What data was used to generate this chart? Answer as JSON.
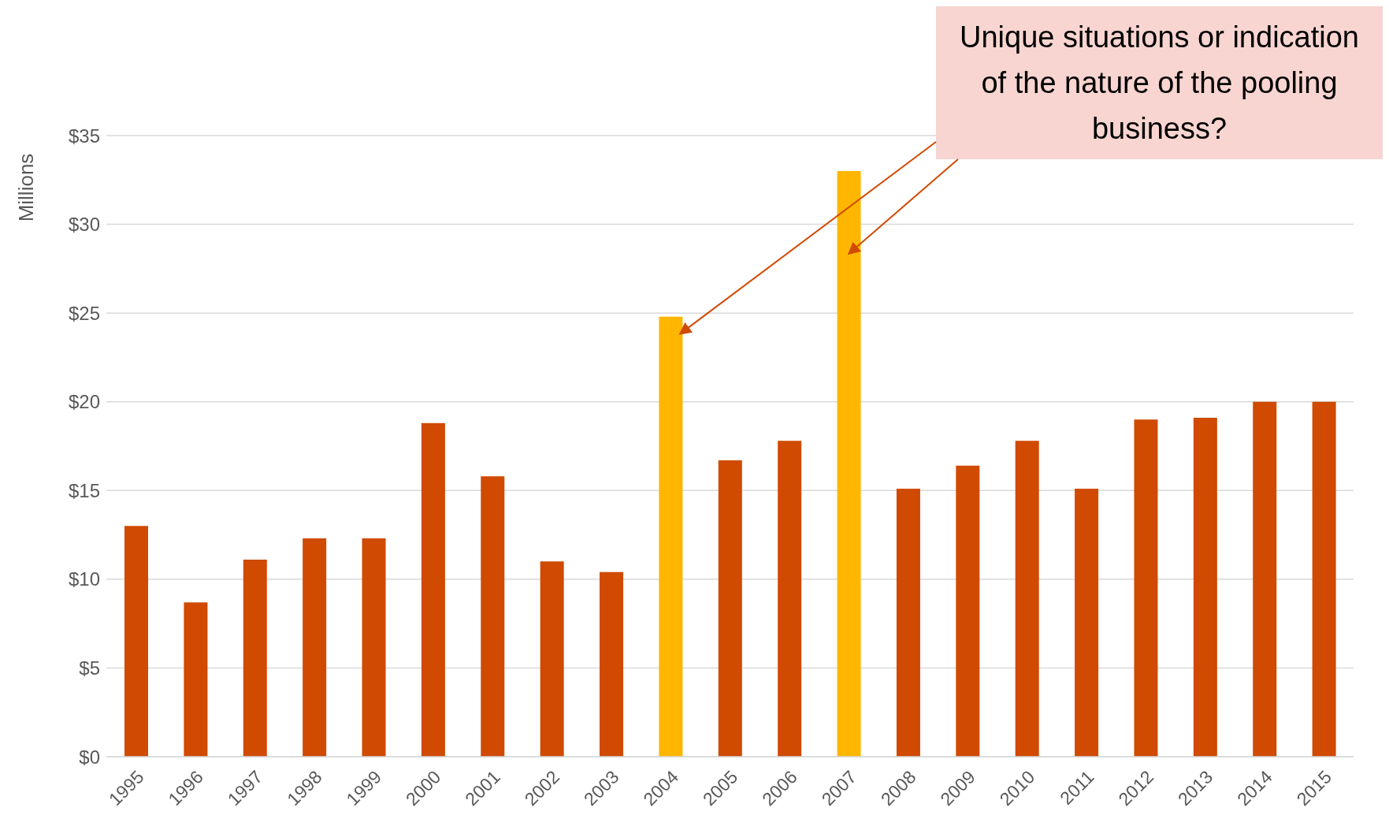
{
  "chart_data": {
    "type": "bar",
    "ylabel": "Millions",
    "categories": [
      "1995",
      "1996",
      "1997",
      "1998",
      "1999",
      "2000",
      "2001",
      "2002",
      "2003",
      "2004",
      "2005",
      "2006",
      "2007",
      "2008",
      "2009",
      "2010",
      "2011",
      "2012",
      "2013",
      "2014",
      "2015"
    ],
    "values": [
      13.0,
      8.7,
      11.1,
      12.3,
      12.3,
      18.8,
      15.8,
      11.0,
      10.4,
      24.8,
      16.7,
      17.8,
      33.0,
      15.1,
      16.4,
      17.8,
      15.1,
      19.0,
      19.1,
      20.0,
      20.0
    ],
    "colors": [
      "#d04a02",
      "#d04a02",
      "#d04a02",
      "#d04a02",
      "#d04a02",
      "#d04a02",
      "#d04a02",
      "#d04a02",
      "#d04a02",
      "#ffb600",
      "#d04a02",
      "#d04a02",
      "#ffb600",
      "#d04a02",
      "#d04a02",
      "#d04a02",
      "#d04a02",
      "#d04a02",
      "#d04a02",
      "#d04a02",
      "#d04a02"
    ],
    "ylim": [
      0,
      35
    ],
    "yticks": [
      {
        "value": 0,
        "label": "$0"
      },
      {
        "value": 5,
        "label": "$5"
      },
      {
        "value": 10,
        "label": "$10"
      },
      {
        "value": 15,
        "label": "$15"
      },
      {
        "value": 20,
        "label": "$20"
      },
      {
        "value": 25,
        "label": "$25"
      },
      {
        "value": 30,
        "label": "$30"
      },
      {
        "value": 35,
        "label": "$35"
      }
    ],
    "grid": "y",
    "legend": false,
    "annotations": [
      "Unique situations or indication of the nature of the pooling business?"
    ]
  }
}
